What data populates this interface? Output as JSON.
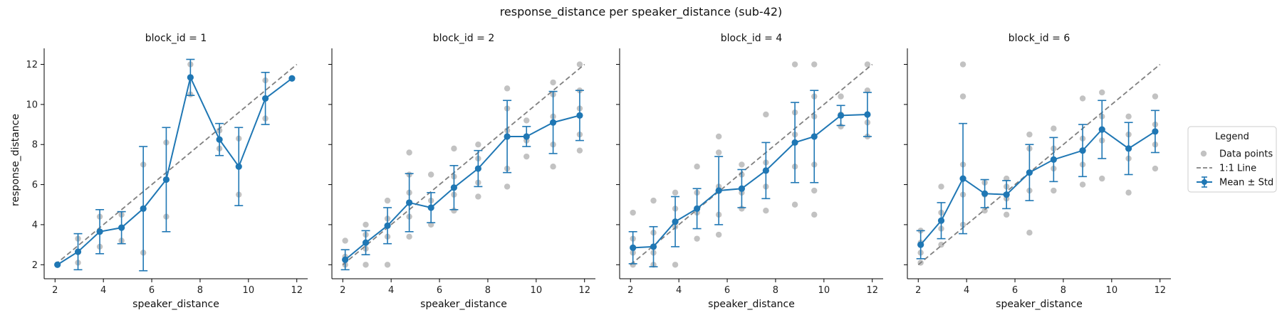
{
  "figure": {
    "title": "response_distance per speaker_distance (sub-42)",
    "xlabel": "speaker_distance",
    "ylabel": "response_distance"
  },
  "legend": {
    "title": "Legend",
    "items": [
      {
        "label": "Data points",
        "kind": "scatter"
      },
      {
        "label": "1:1 Line",
        "kind": "dashed"
      },
      {
        "label": "Mean ± Std",
        "kind": "errorbar"
      }
    ]
  },
  "colors": {
    "mean": "#1f77b4",
    "points": "#999999",
    "identity": "#808080"
  },
  "axes": {
    "xlim": [
      1.55,
      12.45
    ],
    "ylim": [
      1.3,
      12.8
    ],
    "xticks": [
      2,
      4,
      6,
      8,
      10,
      12
    ],
    "yticks": [
      2,
      4,
      6,
      8,
      10,
      12
    ]
  },
  "chart_data": [
    {
      "type": "line",
      "title": "block_id = 1",
      "x": [
        2.1,
        2.95,
        3.85,
        4.75,
        5.65,
        6.6,
        7.6,
        8.8,
        9.6,
        10.7,
        11.8
      ],
      "mean": [
        2.0,
        2.65,
        3.65,
        3.85,
        4.8,
        6.25,
        11.35,
        8.25,
        6.9,
        10.3,
        11.3
      ],
      "std": [
        0.0,
        0.9,
        1.1,
        0.8,
        3.1,
        2.6,
        0.9,
        0.8,
        1.95,
        1.3,
        0.0
      ],
      "points": [
        [
          2.1,
          2.0
        ],
        [
          2.95,
          2.1
        ],
        [
          2.95,
          3.3
        ],
        [
          3.85,
          2.9
        ],
        [
          3.85,
          4.4
        ],
        [
          4.75,
          3.2
        ],
        [
          4.75,
          4.5
        ],
        [
          5.65,
          2.6
        ],
        [
          5.65,
          7.0
        ],
        [
          6.6,
          4.4
        ],
        [
          6.6,
          8.1
        ],
        [
          7.6,
          10.5
        ],
        [
          7.6,
          12.0
        ],
        [
          8.8,
          7.8
        ],
        [
          8.8,
          8.7
        ],
        [
          9.6,
          5.5
        ],
        [
          9.6,
          8.3
        ],
        [
          10.7,
          9.3
        ],
        [
          10.7,
          11.2
        ],
        [
          11.8,
          11.3
        ]
      ]
    },
    {
      "type": "line",
      "title": "block_id = 2",
      "x": [
        2.1,
        2.95,
        3.85,
        4.75,
        5.65,
        6.6,
        7.6,
        8.8,
        9.6,
        10.7,
        11.8
      ],
      "mean": [
        2.25,
        3.1,
        3.95,
        5.1,
        4.85,
        5.85,
        6.8,
        8.4,
        8.4,
        9.1,
        9.45
      ],
      "std": [
        0.5,
        0.6,
        0.9,
        1.45,
        0.75,
        1.1,
        0.9,
        1.8,
        0.5,
        1.55,
        1.25
      ],
      "points": [
        [
          2.1,
          2.0
        ],
        [
          2.1,
          2.4
        ],
        [
          2.1,
          3.2
        ],
        [
          2.95,
          2.0
        ],
        [
          2.95,
          2.8
        ],
        [
          2.95,
          3.5
        ],
        [
          2.95,
          4.0
        ],
        [
          3.85,
          2.0
        ],
        [
          3.85,
          3.4
        ],
        [
          3.85,
          4.3
        ],
        [
          3.85,
          5.2
        ],
        [
          4.75,
          3.4
        ],
        [
          4.75,
          4.4
        ],
        [
          4.75,
          5.6
        ],
        [
          4.75,
          6.5
        ],
        [
          4.75,
          7.6
        ],
        [
          5.65,
          4.0
        ],
        [
          5.65,
          5.2
        ],
        [
          5.65,
          6.5
        ],
        [
          6.6,
          4.7
        ],
        [
          6.6,
          5.5
        ],
        [
          6.6,
          6.4
        ],
        [
          6.6,
          7.8
        ],
        [
          7.6,
          5.4
        ],
        [
          7.6,
          6.1
        ],
        [
          7.6,
          7.3
        ],
        [
          7.6,
          8.0
        ],
        [
          8.8,
          5.9
        ],
        [
          8.8,
          6.8
        ],
        [
          8.8,
          8.7
        ],
        [
          8.8,
          9.8
        ],
        [
          8.8,
          10.8
        ],
        [
          9.6,
          7.4
        ],
        [
          9.6,
          8.2
        ],
        [
          9.6,
          9.2
        ],
        [
          10.7,
          6.9
        ],
        [
          10.7,
          8.0
        ],
        [
          10.7,
          9.4
        ],
        [
          10.7,
          10.5
        ],
        [
          10.7,
          11.1
        ],
        [
          11.8,
          7.7
        ],
        [
          11.8,
          8.5
        ],
        [
          11.8,
          9.8
        ],
        [
          11.8,
          10.7
        ],
        [
          11.8,
          12.0
        ]
      ]
    },
    {
      "type": "line",
      "title": "block_id = 4",
      "x": [
        2.1,
        2.95,
        3.85,
        4.75,
        5.65,
        6.6,
        7.6,
        8.8,
        9.6,
        10.7,
        11.8
      ],
      "mean": [
        2.85,
        2.9,
        4.15,
        4.8,
        5.7,
        5.8,
        6.7,
        8.1,
        8.4,
        9.45,
        9.5
      ],
      "std": [
        0.8,
        1.0,
        1.25,
        1.0,
        1.7,
        0.95,
        1.4,
        2.0,
        2.3,
        0.5,
        1.1
      ],
      "points": [
        [
          2.1,
          2.0
        ],
        [
          2.1,
          2.6
        ],
        [
          2.1,
          3.3
        ],
        [
          2.1,
          4.6
        ],
        [
          2.95,
          2.0
        ],
        [
          2.95,
          2.6
        ],
        [
          2.95,
          3.6
        ],
        [
          2.95,
          5.2
        ],
        [
          3.85,
          2.0
        ],
        [
          3.85,
          3.9
        ],
        [
          3.85,
          4.8
        ],
        [
          3.85,
          5.6
        ],
        [
          4.75,
          3.3
        ],
        [
          4.75,
          4.6
        ],
        [
          4.75,
          5.6
        ],
        [
          4.75,
          6.9
        ],
        [
          5.65,
          3.5
        ],
        [
          5.65,
          4.5
        ],
        [
          5.65,
          5.9
        ],
        [
          5.65,
          7.6
        ],
        [
          5.65,
          8.4
        ],
        [
          6.6,
          4.8
        ],
        [
          6.6,
          5.6
        ],
        [
          6.6,
          6.5
        ],
        [
          6.6,
          7.0
        ],
        [
          7.6,
          4.7
        ],
        [
          7.6,
          5.9
        ],
        [
          7.6,
          7.1
        ],
        [
          7.6,
          9.5
        ],
        [
          8.8,
          5.0
        ],
        [
          8.8,
          6.9
        ],
        [
          8.8,
          8.5
        ],
        [
          8.8,
          9.6
        ],
        [
          8.8,
          12.0
        ],
        [
          9.6,
          4.5
        ],
        [
          9.6,
          5.7
        ],
        [
          9.6,
          7.0
        ],
        [
          9.6,
          9.4
        ],
        [
          9.6,
          10.4
        ],
        [
          9.6,
          12.0
        ],
        [
          10.7,
          8.9
        ],
        [
          10.7,
          9.5
        ],
        [
          10.7,
          10.4
        ],
        [
          11.8,
          8.4
        ],
        [
          11.8,
          9.1
        ],
        [
          11.8,
          10.7
        ],
        [
          11.8,
          12.0
        ]
      ]
    },
    {
      "type": "line",
      "title": "block_id = 6",
      "x": [
        2.1,
        2.95,
        3.85,
        4.75,
        5.65,
        6.6,
        7.6,
        8.8,
        9.6,
        10.7,
        11.8
      ],
      "mean": [
        3.0,
        4.2,
        6.3,
        5.55,
        5.5,
        6.6,
        7.25,
        7.7,
        8.75,
        7.8,
        8.65
      ],
      "std": [
        0.7,
        0.9,
        2.75,
        0.7,
        0.7,
        1.4,
        1.1,
        1.3,
        1.45,
        1.3,
        1.05
      ],
      "points": [
        [
          2.1,
          2.1
        ],
        [
          2.1,
          2.6
        ],
        [
          2.1,
          3.1
        ],
        [
          2.1,
          3.7
        ],
        [
          2.95,
          3.0
        ],
        [
          2.95,
          3.8
        ],
        [
          2.95,
          4.6
        ],
        [
          2.95,
          5.9
        ],
        [
          3.85,
          4.0
        ],
        [
          3.85,
          5.5
        ],
        [
          3.85,
          7.0
        ],
        [
          3.85,
          10.4
        ],
        [
          3.85,
          12.0
        ],
        [
          4.75,
          4.7
        ],
        [
          4.75,
          5.5
        ],
        [
          4.75,
          6.1
        ],
        [
          5.65,
          4.5
        ],
        [
          5.65,
          5.3
        ],
        [
          5.65,
          5.9
        ],
        [
          5.65,
          6.3
        ],
        [
          6.6,
          3.6
        ],
        [
          6.6,
          5.7
        ],
        [
          6.6,
          6.6
        ],
        [
          6.6,
          7.8
        ],
        [
          6.6,
          8.5
        ],
        [
          7.6,
          5.7
        ],
        [
          7.6,
          6.8
        ],
        [
          7.6,
          7.8
        ],
        [
          7.6,
          8.8
        ],
        [
          8.8,
          6.0
        ],
        [
          8.8,
          7.0
        ],
        [
          8.8,
          8.3
        ],
        [
          8.8,
          10.3
        ],
        [
          9.6,
          6.3
        ],
        [
          9.6,
          8.2
        ],
        [
          9.6,
          9.4
        ],
        [
          9.6,
          10.6
        ],
        [
          10.7,
          5.6
        ],
        [
          10.7,
          7.3
        ],
        [
          10.7,
          8.5
        ],
        [
          10.7,
          9.4
        ],
        [
          11.8,
          6.8
        ],
        [
          11.8,
          8.0
        ],
        [
          11.8,
          9.0
        ],
        [
          11.8,
          10.4
        ]
      ]
    }
  ]
}
